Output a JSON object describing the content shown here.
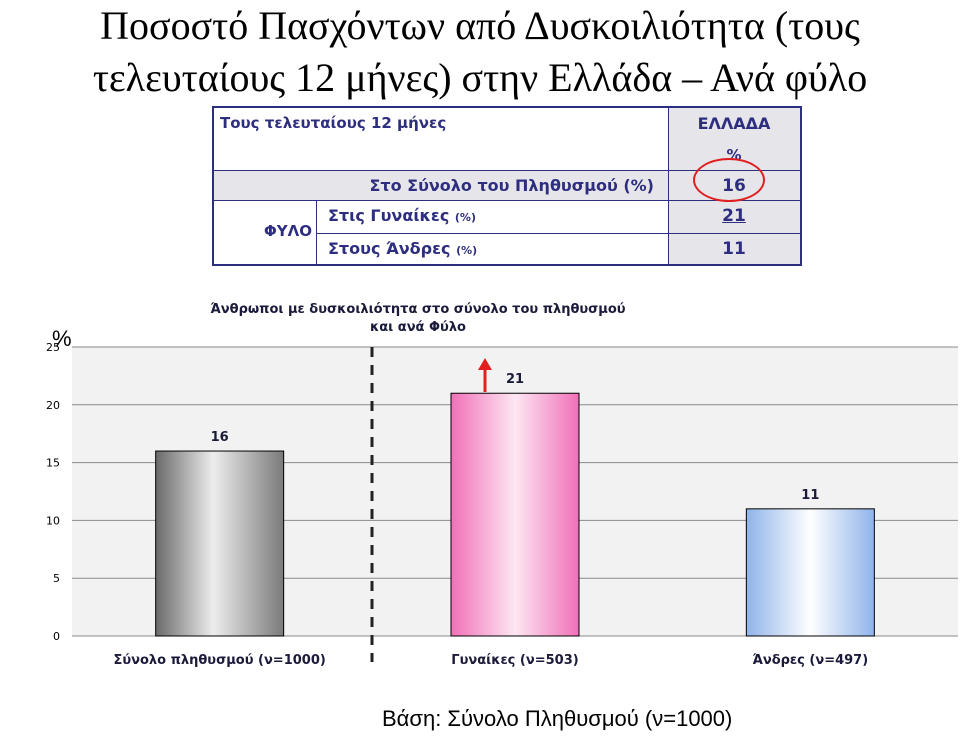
{
  "slide": {
    "title_line1": "Ποσοστό Πασχόντων από Δυσκοιλιότητα (τους",
    "title_line2": "τελευταίους 12 μήνες) στην Ελλάδα – Ανά φύλο",
    "footer": "Βάση: Σύνολο Πληθυσμού (ν=1000)"
  },
  "table": {
    "header_left": "Τους τελευταίους 12 μήνες",
    "header_right": "ΕΛΛΑΔΑ",
    "unit": "%",
    "total_label": "Στο Σύνολο του Πληθυσμού (%)",
    "total_value": "16",
    "group_label": "ΦΥΛΟ",
    "women_label": "Στις Γυναίκες",
    "women_unit": "(%)",
    "women_value": "21",
    "men_label": "Στους Άνδρες",
    "men_unit": "(%)",
    "men_value": "11"
  },
  "colors": {
    "table_text": "#2e2e80",
    "highlight_circle": "#e02020",
    "bar_total": "#9a9a9a",
    "bar_women": "#f070b8",
    "bar_men": "#a8c4ee",
    "arrow": "#e02020"
  },
  "chart_data": {
    "type": "bar",
    "title_line1": "Άνθρωποι με δυσκοιλιότητα στο σύνολο του πληθυσμού",
    "title_line2": "και ανά Φύλο",
    "ylabel": "%",
    "categories": [
      "Σύνολο πληθυσμού (ν=1000)",
      "Γυναίκες (ν=503)",
      "Άνδρες (ν=497)"
    ],
    "values": [
      16,
      21,
      11
    ],
    "value_labels": [
      "16",
      "21",
      "11"
    ],
    "ylim": [
      0,
      25
    ],
    "yticks": [
      0,
      5,
      10,
      15,
      20,
      25
    ],
    "grid": true,
    "legend": "none"
  }
}
